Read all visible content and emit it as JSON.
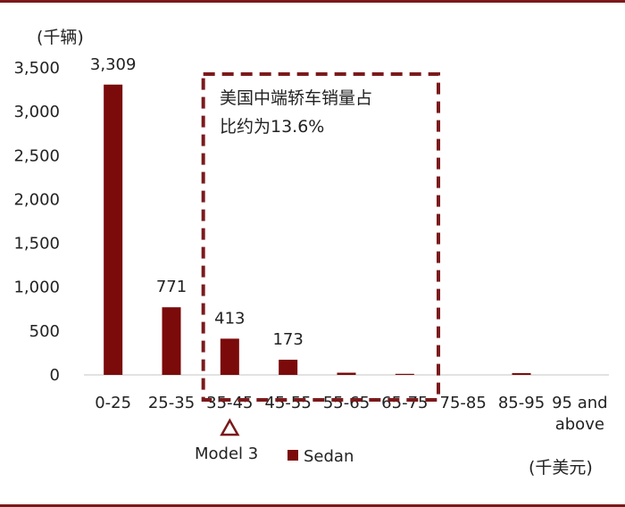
{
  "chart_data": {
    "type": "bar",
    "y_unit": "(千辆)",
    "x_unit": "(千美元)",
    "categories": [
      "0-25",
      "25-35",
      "35-45",
      "45-55",
      "55-65",
      "65-75",
      "75-85",
      "85-95",
      "95 and above"
    ],
    "series": [
      {
        "name": "Sedan",
        "values": [
          3309,
          771,
          413,
          173,
          25,
          12,
          0,
          20,
          0
        ]
      }
    ],
    "data_labels": [
      "3,309",
      "771",
      "413",
      "173",
      "",
      "",
      "",
      "",
      ""
    ],
    "yticks": [
      "0",
      "500",
      "1,000",
      "1,500",
      "2,000",
      "2,500",
      "3,000",
      "3,500"
    ],
    "ylim": [
      0,
      3500
    ],
    "bar_color": "#7b0a0a",
    "highlight": {
      "range_start": "35-45",
      "range_end": "65-75",
      "text_line1": "美国中端轿车销量占",
      "text_line2": "比约为13.6%",
      "border_color": "#7b1a1c"
    },
    "marker": {
      "category": "35-45",
      "label": "Model 3"
    },
    "legend_position": "bottom-center",
    "grid": false
  }
}
